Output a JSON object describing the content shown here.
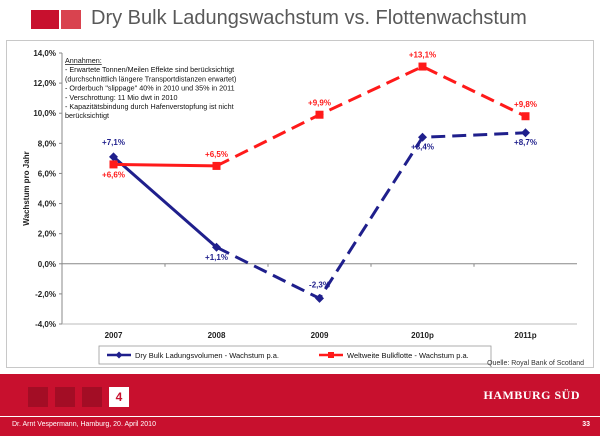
{
  "slide": {
    "title": "Dry Bulk Ladungswachstum vs. Flottenwachstum",
    "source": "Quelle: Royal Bank of Scotland",
    "footer_text": "Dr. Arnt Vespermann, Hamburg, 20. April 2010",
    "page_number": "33",
    "nav_active": "4",
    "brand": "HAMBURG SÜD"
  },
  "assumptions": {
    "heading": "Annahmen:",
    "lines": [
      "- Erwartete Tonnen/Meilen Effekte sind berücksichtigt",
      "(durchschnittlich längere Transportdistanzen erwartet)",
      "- Orderbuch \"slippage\" 40% in 2010 und 35% in 2011",
      "- Verschrottung: 11 Mio dwt in 2010",
      "- Kapazitätsbindung durch Hafenverstopfung ist nicht",
      "berücksichtigt"
    ]
  },
  "colors": {
    "accent": "#c8102e",
    "blue_series": "#1f1f8c",
    "red_series": "#ff1a1a"
  },
  "chart_data": {
    "type": "line",
    "categories": [
      "2007",
      "2008",
      "2009",
      "2010p",
      "2011p"
    ],
    "ylabel": "Wachstum pro Jahr",
    "ylim": [
      -4,
      14
    ],
    "yticks": [
      -4,
      -2,
      0,
      2,
      4,
      6,
      8,
      10,
      12,
      14
    ],
    "ytick_labels": [
      "-4,0%",
      "-2,0%",
      "0,0%",
      "2,0%",
      "4,0%",
      "6,0%",
      "8,0%",
      "10,0%",
      "12,0%",
      "14,0%"
    ],
    "grid": false,
    "legend_position": "bottom",
    "series": [
      {
        "name": "Dry Bulk Ladungsvolumen - Wachstum p.a.",
        "color": "#1f1f8c",
        "marker": "diamond",
        "values": [
          7.1,
          1.1,
          -2.3,
          8.4,
          8.7
        ],
        "labels": [
          "+7,1%",
          "+1,1%",
          "-2,3%",
          "+8,4%",
          "+8,7%"
        ],
        "dashed_from_index": 2
      },
      {
        "name": "Weltweite Bulkflotte - Wachstum p.a.",
        "color": "#ff1a1a",
        "marker": "square",
        "values": [
          6.6,
          6.5,
          9.9,
          13.1,
          9.8
        ],
        "labels": [
          "+6,6%",
          "+6,5%",
          "+9,9%",
          "+13,1%",
          "+9,8%"
        ],
        "dashed_from_index": 2
      }
    ]
  }
}
